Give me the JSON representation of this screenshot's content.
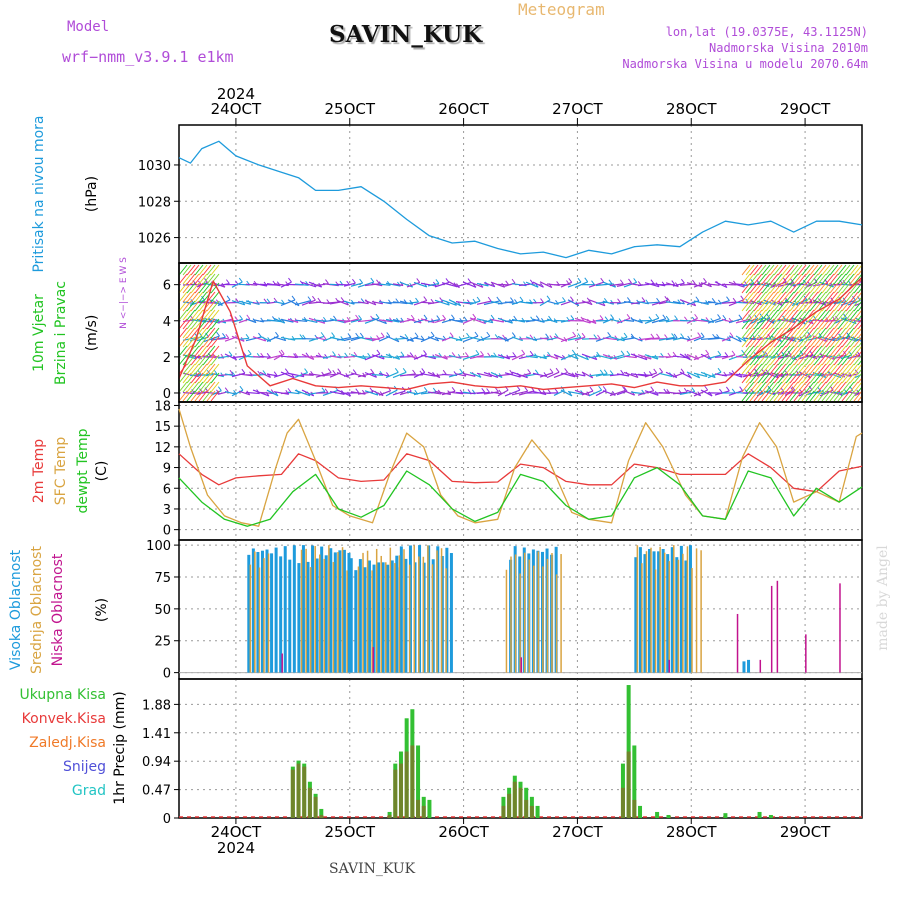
{
  "header": {
    "model_label": "Model",
    "model_name": "wrf−nmm_v3.9.1  e1km",
    "station": "SAVIN_KUK",
    "chart_title": "Meteogram",
    "lonlat": "lon,lat (19.0375E, 43.1125N)",
    "elev": "Nadmorska Visina 2010m",
    "elev_model": "Nadmorska Visina u modelu 2070.64m",
    "footer_station": "SAVIN_KUK",
    "watermark": "made by Angel"
  },
  "colors": {
    "pressure": "#1e9bdc",
    "temp2m": "#e83a3a",
    "sfc": "#d9a441",
    "dewpt": "#22c422",
    "high_cloud": "#1e9bdc",
    "mid_cloud": "#d9a441",
    "low_cloud": "#c1138e",
    "precip_total": "#33c033",
    "precip_conv": "#e83a3a",
    "precip_frozen": "#f07a28",
    "snow": "#5050d8",
    "graupel": "#22c4c4",
    "wind_speed": "#e83a3a",
    "title_purple": "#b04cd8",
    "title_orange": "#e8b870"
  },
  "chart_data": [
    {
      "type": "line",
      "id": "pressure",
      "ylabel": [
        "Pritisak na nivou mora",
        "(hPa)"
      ],
      "ylim": [
        1024.6,
        1032.2
      ],
      "yticks": [
        1026,
        1028,
        1030
      ],
      "series": [
        {
          "x": [
            23.5,
            23.6,
            23.7,
            23.85,
            24.0,
            24.2,
            24.4,
            24.55,
            24.7,
            24.9,
            25.1,
            25.3,
            25.5,
            25.7,
            25.9,
            26.1,
            26.3,
            26.5,
            26.7,
            26.9,
            27.1,
            27.3,
            27.5,
            27.7,
            27.9,
            28.1,
            28.3,
            28.5,
            28.7,
            28.9,
            29.1,
            29.3,
            29.5
          ],
          "values": [
            1030.4,
            1030.1,
            1030.9,
            1031.3,
            1030.5,
            1030.0,
            1029.6,
            1029.3,
            1028.6,
            1028.6,
            1028.8,
            1028.0,
            1027.0,
            1026.1,
            1025.7,
            1025.8,
            1025.4,
            1025.1,
            1025.2,
            1024.9,
            1025.3,
            1025.1,
            1025.5,
            1025.6,
            1025.5,
            1026.3,
            1026.9,
            1026.7,
            1026.9,
            1026.3,
            1026.9,
            1026.9,
            1026.7
          ]
        }
      ]
    },
    {
      "type": "line",
      "id": "wind",
      "ylabel": [
        "10m Vjetar",
        "Brzina i Pravac",
        "(m/s)"
      ],
      "compass": "N <−|−> E  W  S",
      "ylim": [
        -0.5,
        7.2
      ],
      "yticks": [
        0,
        2,
        4,
        6
      ],
      "series": [
        {
          "name": "speed",
          "x": [
            23.5,
            23.65,
            23.8,
            23.95,
            24.1,
            24.3,
            24.5,
            24.7,
            24.9,
            25.1,
            25.3,
            25.5,
            25.7,
            25.9,
            26.1,
            26.3,
            26.5,
            26.7,
            26.9,
            27.1,
            27.3,
            27.5,
            27.7,
            27.9,
            28.1,
            28.3,
            28.5,
            28.7,
            28.9,
            29.1,
            29.3,
            29.5
          ],
          "values": [
            0.8,
            3.0,
            6.2,
            4.5,
            1.5,
            0.4,
            0.8,
            0.4,
            0.3,
            0.4,
            0.3,
            0.2,
            0.5,
            0.6,
            0.4,
            0.3,
            0.4,
            0.2,
            0.3,
            0.4,
            0.5,
            0.3,
            0.6,
            0.4,
            0.4,
            0.6,
            1.8,
            2.8,
            3.6,
            4.5,
            5.2,
            6.4
          ]
        }
      ],
      "barb_rows": [
        6,
        5,
        4,
        3,
        2,
        1,
        0
      ]
    },
    {
      "type": "line",
      "id": "temperature",
      "ylabel": [
        "2m Temp",
        "SFC Temp",
        "dewpt Temp",
        "(C)"
      ],
      "ylim": [
        -1.5,
        18.5
      ],
      "yticks": [
        0,
        3,
        6,
        9,
        12,
        15,
        18
      ],
      "series": [
        {
          "name": "2m Temp",
          "x": [
            23.5,
            23.7,
            23.85,
            24.0,
            24.2,
            24.4,
            24.55,
            24.7,
            24.9,
            25.1,
            25.3,
            25.5,
            25.7,
            25.9,
            26.1,
            26.3,
            26.5,
            26.7,
            26.9,
            27.1,
            27.3,
            27.5,
            27.7,
            27.9,
            28.1,
            28.3,
            28.5,
            28.7,
            28.9,
            29.1,
            29.3,
            29.5
          ],
          "values": [
            11.0,
            8.0,
            6.5,
            7.5,
            7.8,
            8.0,
            11.0,
            10.0,
            7.5,
            7.0,
            7.2,
            11.0,
            10.0,
            7.0,
            6.8,
            6.9,
            9.5,
            9.0,
            7.0,
            6.5,
            6.5,
            9.5,
            9.0,
            8.0,
            8.0,
            8.0,
            11.0,
            9.0,
            6.0,
            5.5,
            8.5,
            9.2
          ]
        },
        {
          "name": "SFC Temp",
          "x": [
            23.5,
            23.6,
            23.75,
            23.9,
            24.05,
            24.2,
            24.35,
            24.45,
            24.55,
            24.7,
            24.85,
            25.0,
            25.2,
            25.35,
            25.5,
            25.65,
            25.8,
            25.95,
            26.1,
            26.3,
            26.45,
            26.6,
            26.75,
            26.95,
            27.1,
            27.3,
            27.45,
            27.6,
            27.75,
            27.95,
            28.1,
            28.3,
            28.45,
            28.6,
            28.75,
            28.9,
            29.1,
            29.3,
            29.45,
            29.5
          ],
          "values": [
            17.5,
            12.0,
            5.0,
            2.0,
            1.0,
            0.5,
            9.0,
            14.0,
            16.0,
            10.0,
            3.5,
            2.0,
            1.0,
            8.0,
            14.0,
            12.0,
            5.0,
            2.0,
            1.0,
            1.5,
            9.0,
            13.0,
            10.0,
            2.5,
            1.5,
            1.0,
            10.0,
            15.5,
            12.0,
            5.0,
            2.0,
            1.5,
            10.5,
            15.5,
            12.0,
            4.0,
            5.5,
            4.0,
            13.5,
            14.0
          ]
        },
        {
          "name": "dewpt Temp",
          "x": [
            23.5,
            23.7,
            23.9,
            24.1,
            24.3,
            24.5,
            24.7,
            24.9,
            25.1,
            25.3,
            25.5,
            25.7,
            25.9,
            26.1,
            26.3,
            26.5,
            26.7,
            26.9,
            27.1,
            27.3,
            27.5,
            27.7,
            27.9,
            28.1,
            28.3,
            28.5,
            28.7,
            28.9,
            29.1,
            29.3,
            29.5
          ],
          "values": [
            7.5,
            4.0,
            1.5,
            0.5,
            1.5,
            5.5,
            8.0,
            3.0,
            1.8,
            3.5,
            8.5,
            6.5,
            3.0,
            1.2,
            2.5,
            8.0,
            7.0,
            3.5,
            1.5,
            2.0,
            7.5,
            9.0,
            6.5,
            2.0,
            1.5,
            8.5,
            7.5,
            2.0,
            6.0,
            4.0,
            6.2
          ]
        }
      ]
    },
    {
      "type": "bar",
      "id": "clouds",
      "ylabel": [
        "Visoka Oblacnost",
        "Srednja Oblacnost",
        "Niska Oblacnost",
        "(%)"
      ],
      "ylim": [
        -5,
        104
      ],
      "yticks": [
        0,
        25,
        50,
        75,
        100
      ],
      "high_blocks": [
        [
          24.1,
          25.0,
          100
        ],
        [
          25.0,
          25.4,
          90
        ],
        [
          25.4,
          25.9,
          100
        ],
        [
          26.4,
          26.8,
          100
        ],
        [
          27.5,
          28.0,
          100
        ],
        [
          28.45,
          28.5,
          10
        ]
      ],
      "mid_blocks": [
        [
          24.1,
          24.3,
          95
        ],
        [
          24.55,
          25.0,
          100
        ],
        [
          25.05,
          25.5,
          98
        ],
        [
          25.5,
          25.85,
          100
        ],
        [
          26.35,
          26.85,
          95
        ],
        [
          27.5,
          28.1,
          100
        ]
      ],
      "low_spikes": [
        [
          24.4,
          15
        ],
        [
          25.2,
          20
        ],
        [
          26.5,
          12
        ],
        [
          27.8,
          10
        ],
        [
          28.4,
          46
        ],
        [
          28.6,
          10
        ],
        [
          28.7,
          68
        ],
        [
          28.75,
          72
        ],
        [
          29.0,
          30
        ],
        [
          29.3,
          70
        ]
      ]
    },
    {
      "type": "bar",
      "id": "precip",
      "ylabel": [
        "1hr Precip (mm)"
      ],
      "legend": [
        "Ukupna Kisa",
        "Konvek.Kisa",
        "Zaledj.Kisa",
        "Snijeg",
        "Grad"
      ],
      "ylim": [
        0,
        2.3
      ],
      "yticks": [
        0,
        0.47,
        0.94,
        1.41,
        1.88
      ],
      "bars": [
        [
          24.5,
          0.85,
          0.8
        ],
        [
          24.55,
          0.95,
          0.9
        ],
        [
          24.6,
          0.9,
          0.85
        ],
        [
          24.65,
          0.6,
          0.5
        ],
        [
          24.7,
          0.4,
          0.35
        ],
        [
          24.75,
          0.15,
          0.05
        ],
        [
          25.35,
          0.1,
          0.05
        ],
        [
          25.4,
          0.9,
          0.8
        ],
        [
          25.45,
          1.1,
          0.9
        ],
        [
          25.5,
          1.65,
          1.1
        ],
        [
          25.55,
          1.8,
          1.2
        ],
        [
          25.6,
          1.2,
          0.3
        ],
        [
          25.65,
          0.35,
          0.2
        ],
        [
          25.7,
          0.3,
          0.0
        ],
        [
          26.35,
          0.35,
          0.2
        ],
        [
          26.4,
          0.5,
          0.4
        ],
        [
          26.45,
          0.7,
          0.6
        ],
        [
          26.5,
          0.6,
          0.5
        ],
        [
          26.55,
          0.5,
          0.3
        ],
        [
          26.6,
          0.35,
          0.2
        ],
        [
          26.65,
          0.2,
          0.0
        ],
        [
          27.4,
          0.9,
          0.5
        ],
        [
          27.45,
          2.2,
          1.1
        ],
        [
          27.5,
          1.2,
          0.3
        ],
        [
          27.55,
          0.2,
          0.0
        ],
        [
          27.7,
          0.1,
          0.0
        ],
        [
          27.8,
          0.05,
          0.0
        ],
        [
          28.3,
          0.08,
          0.0
        ],
        [
          28.6,
          0.1,
          0.0
        ],
        [
          28.7,
          0.05,
          0.0
        ]
      ]
    }
  ],
  "axis": {
    "year": "2024",
    "dates": [
      "24OCT",
      "25OCT",
      "26OCT",
      "27OCT",
      "28OCT",
      "29OCT"
    ],
    "date_values": [
      24,
      25,
      26,
      27,
      28,
      29
    ],
    "x_range": [
      23.5,
      29.5
    ]
  }
}
